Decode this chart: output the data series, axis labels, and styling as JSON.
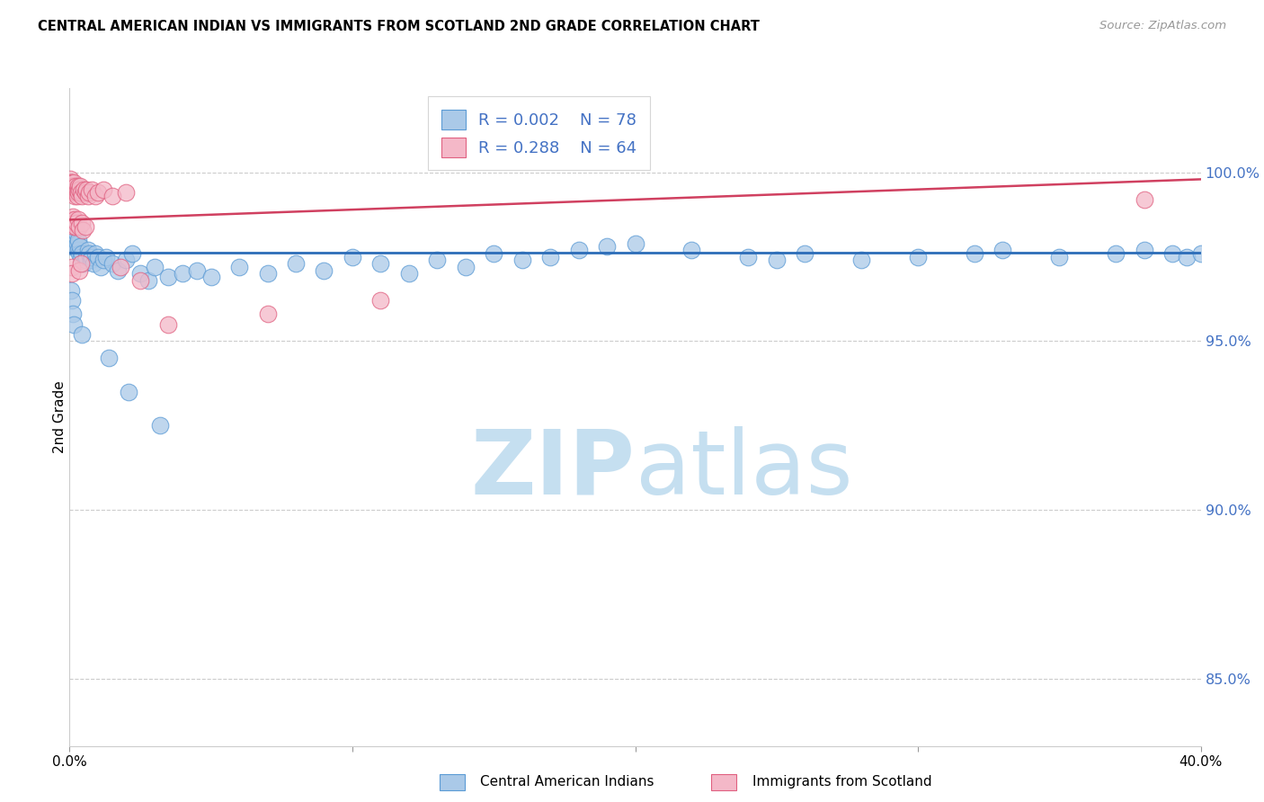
{
  "title": "CENTRAL AMERICAN INDIAN VS IMMIGRANTS FROM SCOTLAND 2ND GRADE CORRELATION CHART",
  "source": "Source: ZipAtlas.com",
  "ylabel": "2nd Grade",
  "yticks": [
    85.0,
    90.0,
    95.0,
    100.0
  ],
  "ytick_labels": [
    "85.0%",
    "90.0%",
    "95.0%",
    "100.0%"
  ],
  "xlim": [
    0.0,
    40.0
  ],
  "ylim": [
    83.0,
    102.5
  ],
  "legend_r1": "0.002",
  "legend_n1": "78",
  "legend_r2": "0.288",
  "legend_n2": "64",
  "blue_color": "#aac9e8",
  "blue_edge_color": "#5b9bd5",
  "pink_color": "#f4b8c8",
  "pink_edge_color": "#e06080",
  "trendline_blue_color": "#2b6cb8",
  "trendline_pink_color": "#d04060",
  "watermark_zip_color": "#c5dff0",
  "watermark_atlas_color": "#c5dff0",
  "blue_x": [
    0.05,
    0.08,
    0.1,
    0.12,
    0.14,
    0.15,
    0.18,
    0.2,
    0.22,
    0.25,
    0.28,
    0.3,
    0.32,
    0.35,
    0.38,
    0.4,
    0.45,
    0.5,
    0.55,
    0.6,
    0.65,
    0.7,
    0.75,
    0.8,
    0.85,
    0.9,
    1.0,
    1.1,
    1.2,
    1.3,
    1.5,
    1.7,
    2.0,
    2.2,
    2.5,
    2.8,
    3.0,
    3.5,
    4.0,
    4.5,
    5.0,
    6.0,
    7.0,
    8.0,
    9.0,
    10.0,
    11.0,
    12.0,
    13.0,
    14.0,
    15.0,
    16.0,
    17.0,
    18.0,
    19.0,
    20.0,
    22.0,
    24.0,
    25.0,
    26.0,
    28.0,
    30.0,
    32.0,
    33.0,
    35.0,
    37.0,
    38.0,
    39.0,
    39.5,
    40.0,
    0.06,
    0.09,
    0.11,
    0.16,
    0.42,
    1.4,
    2.1,
    3.2
  ],
  "blue_y": [
    97.8,
    98.0,
    98.1,
    98.2,
    98.3,
    98.1,
    97.9,
    98.0,
    97.8,
    98.2,
    97.9,
    97.7,
    98.0,
    97.6,
    97.8,
    97.5,
    97.6,
    97.3,
    97.4,
    97.5,
    97.7,
    97.6,
    97.4,
    97.5,
    97.3,
    97.6,
    97.5,
    97.2,
    97.4,
    97.5,
    97.3,
    97.1,
    97.4,
    97.6,
    97.0,
    96.8,
    97.2,
    96.9,
    97.0,
    97.1,
    96.9,
    97.2,
    97.0,
    97.3,
    97.1,
    97.5,
    97.3,
    97.0,
    97.4,
    97.2,
    97.6,
    97.4,
    97.5,
    97.7,
    97.8,
    97.9,
    97.7,
    97.5,
    97.4,
    97.6,
    97.4,
    97.5,
    97.6,
    97.7,
    97.5,
    97.6,
    97.7,
    97.6,
    97.5,
    97.6,
    96.5,
    96.2,
    95.8,
    95.5,
    95.2,
    94.5,
    93.5,
    92.5
  ],
  "pink_x": [
    0.02,
    0.03,
    0.04,
    0.05,
    0.06,
    0.07,
    0.08,
    0.09,
    0.1,
    0.11,
    0.12,
    0.13,
    0.14,
    0.15,
    0.16,
    0.17,
    0.18,
    0.19,
    0.2,
    0.22,
    0.24,
    0.26,
    0.28,
    0.3,
    0.32,
    0.34,
    0.38,
    0.4,
    0.45,
    0.5,
    0.55,
    0.6,
    0.65,
    0.7,
    0.8,
    0.9,
    1.0,
    1.2,
    1.5,
    2.0,
    0.07,
    0.09,
    0.11,
    0.13,
    0.15,
    0.17,
    0.19,
    0.21,
    0.25,
    0.3,
    0.35,
    0.42,
    0.48,
    0.55,
    0.08,
    0.1,
    0.35,
    0.4,
    1.8,
    2.5,
    3.5,
    7.0,
    11.0,
    38.0
  ],
  "pink_y": [
    99.8,
    99.7,
    99.6,
    99.5,
    99.4,
    99.6,
    99.5,
    99.7,
    99.6,
    99.5,
    99.4,
    99.5,
    99.6,
    99.7,
    99.5,
    99.4,
    99.5,
    99.3,
    99.5,
    99.6,
    99.4,
    99.3,
    99.5,
    99.6,
    99.4,
    99.5,
    99.6,
    99.4,
    99.3,
    99.5,
    99.4,
    99.5,
    99.3,
    99.4,
    99.5,
    99.3,
    99.4,
    99.5,
    99.3,
    99.4,
    98.5,
    98.6,
    98.7,
    98.5,
    98.4,
    98.5,
    98.6,
    98.4,
    98.5,
    98.6,
    98.4,
    98.5,
    98.3,
    98.4,
    97.2,
    97.0,
    97.1,
    97.3,
    97.2,
    96.8,
    95.5,
    95.8,
    96.2,
    99.2
  ]
}
